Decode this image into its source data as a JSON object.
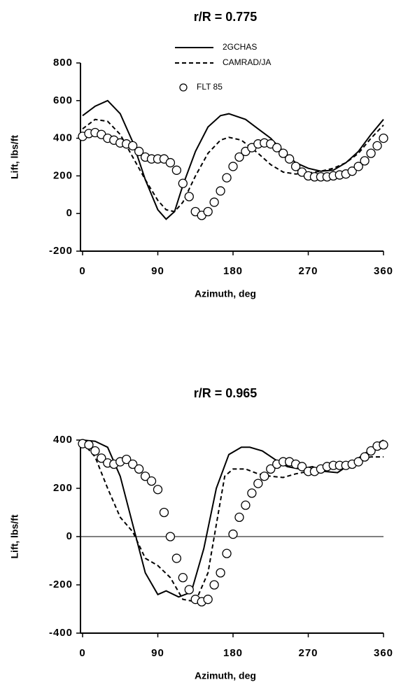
{
  "chart_data": [
    {
      "type": "line",
      "title": "r/R = 0.775",
      "xlabel": "Azimuth, deg",
      "ylabel": "Lift,  lbs/ft",
      "xlim": [
        0,
        360
      ],
      "xticks": [
        0,
        90,
        180,
        270,
        360
      ],
      "ylim": [
        -200,
        800
      ],
      "yticks": [
        -200,
        0,
        200,
        400,
        600,
        800
      ],
      "legend": "top-center",
      "zero_line": false,
      "series": [
        {
          "name": "2GCHAS",
          "color": "#000000",
          "style": "solid",
          "x": [
            0,
            15,
            30,
            45,
            60,
            75,
            90,
            100,
            110,
            120,
            135,
            150,
            165,
            175,
            195,
            210,
            225,
            240,
            255,
            270,
            285,
            300,
            315,
            330,
            345,
            360
          ],
          "values": [
            520,
            570,
            600,
            530,
            380,
            180,
            20,
            -30,
            10,
            150,
            330,
            460,
            520,
            530,
            500,
            450,
            400,
            330,
            270,
            240,
            225,
            230,
            270,
            330,
            420,
            500
          ]
        },
        {
          "name": "CAMRAD/JA",
          "color": "#000000",
          "style": "dashed",
          "x": [
            0,
            15,
            30,
            45,
            60,
            75,
            90,
            100,
            110,
            120,
            135,
            150,
            165,
            175,
            190,
            210,
            225,
            240,
            255,
            270,
            285,
            300,
            315,
            330,
            345,
            360
          ],
          "values": [
            450,
            500,
            490,
            420,
            300,
            180,
            70,
            20,
            10,
            60,
            200,
            320,
            390,
            405,
            390,
            320,
            260,
            220,
            210,
            215,
            225,
            240,
            270,
            320,
            400,
            470
          ]
        },
        {
          "name": "FLT 85",
          "color": "#000000",
          "style": "circle",
          "x": [
            0,
            7.5,
            15,
            22.5,
            30,
            37.5,
            45,
            52.5,
            60,
            67.5,
            75,
            82.5,
            90,
            97.5,
            105,
            112.5,
            120,
            127.5,
            135,
            142.5,
            150,
            157.5,
            165,
            172.5,
            180,
            187.5,
            195,
            202.5,
            210,
            217.5,
            225,
            232.5,
            240,
            247.5,
            255,
            262.5,
            270,
            277.5,
            285,
            292.5,
            300,
            307.5,
            315,
            322.5,
            330,
            337.5,
            345,
            352.5,
            360
          ],
          "values": [
            410,
            425,
            430,
            420,
            400,
            390,
            375,
            370,
            360,
            330,
            300,
            290,
            290,
            290,
            270,
            230,
            160,
            90,
            10,
            -10,
            10,
            60,
            120,
            190,
            250,
            300,
            330,
            350,
            370,
            375,
            370,
            350,
            320,
            290,
            250,
            220,
            200,
            195,
            195,
            195,
            200,
            205,
            210,
            225,
            250,
            280,
            320,
            360,
            400
          ]
        }
      ]
    },
    {
      "type": "line",
      "title": "r/R = 0.965",
      "xlabel": "Azimuth, deg",
      "ylabel": "Lift,  lbs/ft",
      "xlim": [
        0,
        360
      ],
      "xticks": [
        0,
        90,
        180,
        270,
        360
      ],
      "ylim": [
        -400,
        400
      ],
      "yticks": [
        -400,
        -200,
        0,
        200,
        400
      ],
      "zero_line": true,
      "series": [
        {
          "color": "#000000",
          "style": "solid",
          "x": [
            0,
            15,
            30,
            45,
            60,
            75,
            90,
            100,
            115,
            130,
            145,
            160,
            175,
            190,
            200,
            215,
            230,
            245,
            260,
            275,
            290,
            305,
            320,
            340,
            355,
            360
          ],
          "values": [
            400,
            395,
            370,
            250,
            50,
            -150,
            -240,
            -225,
            -250,
            -230,
            -50,
            200,
            340,
            370,
            370,
            355,
            320,
            290,
            280,
            290,
            270,
            265,
            300,
            350,
            390,
            400
          ]
        },
        {
          "color": "#000000",
          "style": "dashed",
          "x": [
            0,
            15,
            30,
            45,
            60,
            75,
            90,
            105,
            120,
            135,
            150,
            160,
            170,
            180,
            195,
            210,
            225,
            240,
            255,
            270,
            285,
            300,
            315,
            330,
            345,
            360
          ],
          "values": [
            390,
            330,
            200,
            80,
            20,
            -90,
            -120,
            -170,
            -260,
            -270,
            -150,
            50,
            250,
            280,
            280,
            260,
            250,
            245,
            260,
            270,
            280,
            290,
            300,
            320,
            330,
            330
          ]
        },
        {
          "color": "#000000",
          "style": "circle",
          "x": [
            0,
            7.5,
            15,
            22.5,
            30,
            37.5,
            45,
            52.5,
            60,
            67.5,
            75,
            82.5,
            90,
            97.5,
            105,
            112.5,
            120,
            127.5,
            135,
            142.5,
            150,
            157.5,
            165,
            172.5,
            180,
            187.5,
            195,
            202.5,
            210,
            217.5,
            225,
            232.5,
            240,
            247.5,
            255,
            262.5,
            270,
            277.5,
            285,
            292.5,
            300,
            307.5,
            315,
            322.5,
            330,
            337.5,
            345,
            352.5,
            360
          ],
          "values": [
            385,
            380,
            355,
            325,
            305,
            300,
            310,
            320,
            300,
            280,
            250,
            230,
            195,
            100,
            0,
            -90,
            -170,
            -220,
            -260,
            -270,
            -260,
            -200,
            -150,
            -70,
            10,
            80,
            130,
            180,
            220,
            250,
            280,
            300,
            310,
            310,
            300,
            290,
            270,
            270,
            280,
            290,
            295,
            295,
            295,
            300,
            310,
            330,
            355,
            375,
            380
          ]
        }
      ]
    }
  ]
}
